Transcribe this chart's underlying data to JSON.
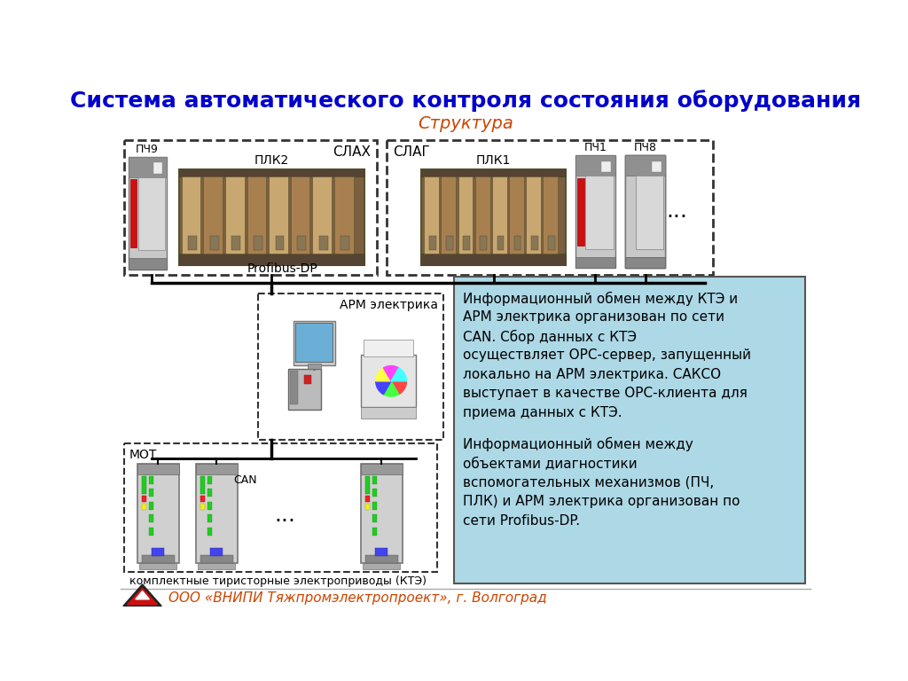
{
  "title": "Система автоматического контроля состояния оборудования",
  "subtitle": "Структура",
  "title_color": "#0000CD",
  "subtitle_color": "#CC4400",
  "bg_color": "#FFFFFF",
  "info_box_color": "#ADD8E6",
  "info_box_border": "#555555",
  "info_text1_lines": [
    "Информационный обмен между КТЭ и",
    "АРМ электрика организован по сети",
    "CAN. Сбор данных с КТЭ",
    "осуществляет OPC-сервер, запущенный",
    "локально на АРМ электрика. САКСО",
    "выступает в качестве OPC-клиента для",
    "приема данных с КТЭ."
  ],
  "info_text2_lines": [
    "Информационный обмен между",
    "объектами диагностики",
    "вспомогательных механизмов (ПЧ,",
    "ПЛК) и АРМ электрика организован по",
    "сети Profibus-DP."
  ],
  "footer_text": "ООО «ВНИПИ Тяжпромэлектропроект», г. Волгоград",
  "footer_text_color": "#CC4400"
}
